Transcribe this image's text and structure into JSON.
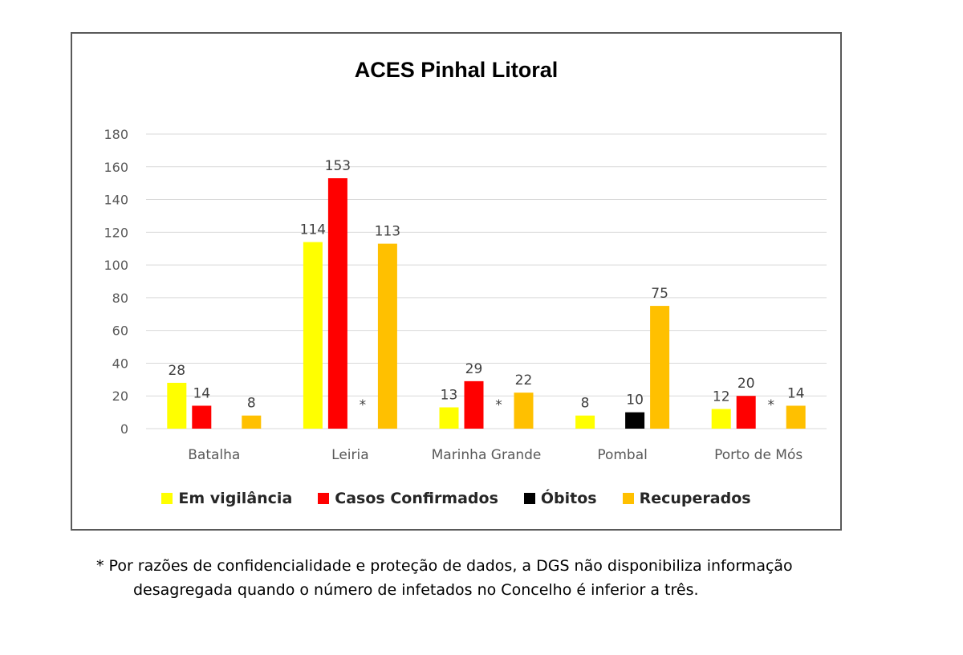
{
  "chart_data": {
    "type": "bar",
    "title": "ACES Pinhal Litoral",
    "categories": [
      "Batalha",
      "Leiria",
      "Marinha Grande",
      "Pombal",
      "Porto de Mós"
    ],
    "ylim": [
      0,
      180
    ],
    "yticks": [
      0,
      20,
      40,
      60,
      80,
      100,
      120,
      140,
      160,
      180
    ],
    "grid": true,
    "legend_position": "bottom",
    "series": [
      {
        "name": "Em vigilância",
        "color": "#FFFF00",
        "values": [
          28,
          114,
          13,
          8,
          12
        ]
      },
      {
        "name": "Casos Confirmados",
        "color": "#FF0000",
        "values": [
          14,
          153,
          29,
          null,
          20
        ]
      },
      {
        "name": "Óbitos",
        "color": "#000000",
        "values": [
          null,
          null,
          null,
          10,
          null
        ]
      },
      {
        "name": "Recuperados",
        "color": "#FFC000",
        "values": [
          8,
          113,
          22,
          75,
          14
        ]
      }
    ],
    "annotations": [
      {
        "category": "Leiria",
        "series": "Óbitos",
        "text": "*"
      },
      {
        "category": "Marinha Grande",
        "series": "Óbitos",
        "text": "*"
      },
      {
        "category": "Porto de Mós",
        "series": "Óbitos",
        "text": "*"
      }
    ]
  },
  "footnote": {
    "line1": "* Por razões de confidencialidade e proteção de dados, a DGS não disponibiliza informação",
    "line2": "desagregada quando o número de infetados no Concelho é inferior a três."
  }
}
